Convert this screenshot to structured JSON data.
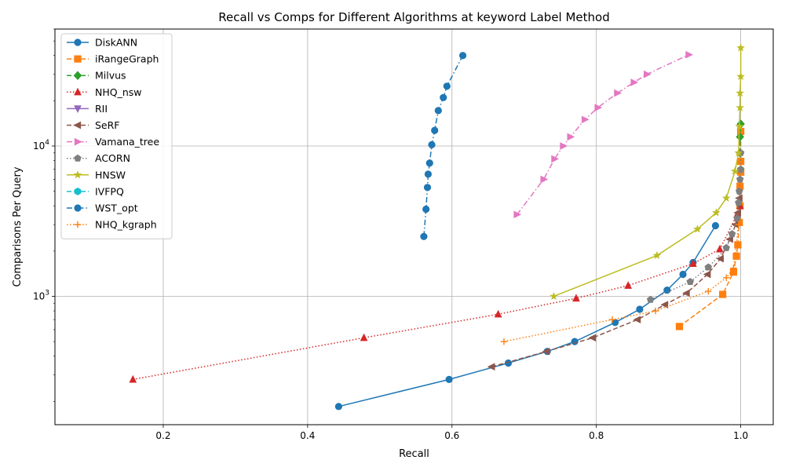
{
  "chart_data": {
    "type": "line",
    "title": "Recall vs Comps for Different Algorithms at keyword Label Method",
    "xlabel": "Recall",
    "ylabel": "Comparisons Per Query",
    "xlim": [
      0.05,
      1.045
    ],
    "ylim": [
      140,
      60000
    ],
    "xscale": "linear",
    "yscale": "log",
    "grid": true,
    "legend_position": "upper-left",
    "x_ticks": [
      {
        "value": 0.2,
        "label": "0.2"
      },
      {
        "value": 0.4,
        "label": "0.4"
      },
      {
        "value": 0.6,
        "label": "0.6"
      },
      {
        "value": 0.8,
        "label": "0.8"
      },
      {
        "value": 1.0,
        "label": "1.0"
      }
    ],
    "y_ticks": [
      {
        "value": 1000,
        "base": "10",
        "exp": "3"
      },
      {
        "value": 10000,
        "base": "10",
        "exp": "4"
      }
    ],
    "series": [
      {
        "name": "DiskANN",
        "color": "#1f77b4",
        "marker": "circle",
        "dash": "",
        "x": [
          0.443,
          0.596,
          0.678,
          0.732,
          0.77,
          0.826,
          0.86,
          0.898,
          0.92,
          0.934,
          0.965
        ],
        "y": [
          185,
          280,
          360,
          430,
          500,
          670,
          820,
          1100,
          1400,
          1680,
          2950
        ]
      },
      {
        "name": "iRangeGraph",
        "color": "#ff7f0e",
        "marker": "square",
        "dash": "6,3",
        "x": [
          0.915,
          0.975,
          0.99,
          0.994,
          0.996,
          0.998,
          0.999,
          0.999,
          1.0,
          1.0,
          1.0
        ],
        "y": [
          630,
          1030,
          1450,
          1850,
          2200,
          3100,
          4000,
          5400,
          6700,
          7900,
          12500
        ]
      },
      {
        "name": "Milvus",
        "color": "#2ca02c",
        "marker": "diamond",
        "dash": "6,3",
        "x": [
          0.999,
          0.999,
          1.0
        ],
        "y": [
          9000,
          11500,
          14000
        ]
      },
      {
        "name": "NHQ_nsw",
        "color": "#d62728",
        "marker": "triangle-up",
        "dash": "1.5,2.5",
        "x": [
          0.158,
          0.478,
          0.664,
          0.772,
          0.844,
          0.934,
          0.971,
          0.995,
          0.999
        ],
        "y": [
          280,
          530,
          760,
          970,
          1180,
          1650,
          2060,
          3500,
          4000
        ]
      },
      {
        "name": "RII",
        "color": "#9467bd",
        "marker": "triangle-down",
        "dash": "",
        "x": [],
        "y": []
      },
      {
        "name": "SeRF",
        "color": "#8c564b",
        "marker": "triangle-left",
        "dash": "6,3",
        "x": [
          0.655,
          0.731,
          0.795,
          0.857,
          0.895,
          0.925,
          0.954,
          0.972,
          0.985,
          0.993,
          0.996,
          0.998
        ],
        "y": [
          340,
          430,
          530,
          700,
          880,
          1050,
          1400,
          1780,
          2400,
          3000,
          3600,
          4500
        ]
      },
      {
        "name": "Vamana_tree",
        "color": "#e377c2",
        "marker": "triangle-right",
        "dash": "7,3,1.5,3",
        "x": [
          0.69,
          0.727,
          0.742,
          0.754,
          0.764,
          0.784,
          0.802,
          0.829,
          0.852,
          0.87,
          0.928
        ],
        "y": [
          3500,
          6000,
          8200,
          10000,
          11500,
          15000,
          18000,
          22500,
          26500,
          30000,
          40500
        ]
      },
      {
        "name": "ACORN",
        "color": "#7f7f7f",
        "marker": "pentagon",
        "dash": "1.5,2.5",
        "x": [
          0.875,
          0.93,
          0.955,
          0.98,
          0.988,
          0.995,
          0.997,
          0.998,
          0.999,
          1.0,
          1.0
        ],
        "y": [
          950,
          1250,
          1560,
          2100,
          2600,
          3300,
          4200,
          5000,
          6000,
          7000,
          9000
        ]
      },
      {
        "name": "HNSW",
        "color": "#bcbd22",
        "marker": "star",
        "dash": "",
        "x": [
          0.741,
          0.884,
          0.94,
          0.966,
          0.98,
          0.992,
          0.997,
          0.998,
          0.999,
          0.999,
          1.0,
          1.0
        ],
        "y": [
          1000,
          1870,
          2800,
          3600,
          4500,
          6800,
          9000,
          13500,
          18000,
          22500,
          29000,
          45000
        ]
      },
      {
        "name": "IVFPQ",
        "color": "#17becf",
        "marker": "hexagon",
        "dash": "6,3",
        "x": [],
        "y": []
      },
      {
        "name": "WST_opt",
        "color": "#1f77b4",
        "marker": "circle",
        "dash": "7,3,1.5,3",
        "x": [
          0.561,
          0.564,
          0.566,
          0.567,
          0.569,
          0.572,
          0.576,
          0.581,
          0.588,
          0.593,
          0.615
        ],
        "y": [
          2500,
          3800,
          5300,
          6500,
          7700,
          10200,
          12700,
          17200,
          21000,
          25000,
          40000
        ]
      },
      {
        "name": "NHQ_kgraph",
        "color": "#ff7f0e",
        "marker": "plus",
        "dash": "1.5,2.5",
        "x": [
          0.672,
          0.822,
          0.882,
          0.955,
          0.98,
          0.99,
          0.997
        ],
        "y": [
          500,
          700,
          800,
          1080,
          1330,
          1540,
          3000
        ]
      }
    ]
  }
}
